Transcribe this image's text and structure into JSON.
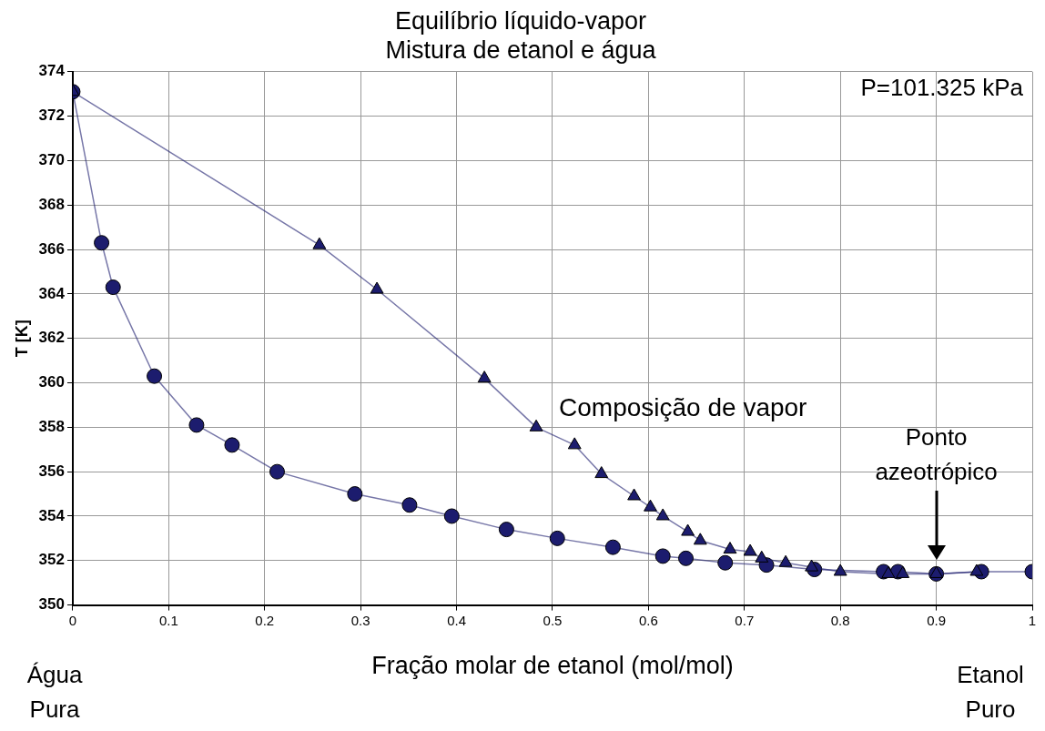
{
  "chart_data": {
    "type": "line",
    "title": "Equilíbrio líquido-vapor",
    "subtitle": "Mistura de etanol e água",
    "xlabel": "Fração molar de etanol (mol/mol)",
    "ylabel": "T [K]",
    "xlim": [
      0,
      1
    ],
    "xticks": [
      0,
      0.1,
      0.2,
      0.3,
      0.4,
      0.5,
      0.6,
      0.7,
      0.8,
      0.9,
      1
    ],
    "ylim": [
      350,
      374
    ],
    "yticks": [
      350,
      352,
      354,
      356,
      358,
      360,
      362,
      364,
      366,
      368,
      370,
      372,
      374
    ],
    "grid": true,
    "legend": false,
    "series": [
      {
        "marker": "circle",
        "color": "#1c1c6e",
        "x": [
          0,
          0.03,
          0.042,
          0.085,
          0.129,
          0.166,
          0.213,
          0.294,
          0.351,
          0.395,
          0.452,
          0.505,
          0.563,
          0.615,
          0.639,
          0.68,
          0.723,
          0.773,
          0.845,
          0.86,
          0.9,
          0.947,
          1
        ],
        "values": [
          373.1,
          366.3,
          364.3,
          360.3,
          358.1,
          357.2,
          356.0,
          355.0,
          354.5,
          354.0,
          353.4,
          353.0,
          352.6,
          352.2,
          352.1,
          351.9,
          351.8,
          351.6,
          351.5,
          351.5,
          351.4,
          351.5,
          351.5
        ]
      },
      {
        "marker": "triangle",
        "name": "Composição de vapor",
        "color": "#1c1c6e",
        "x": [
          0,
          0.257,
          0.317,
          0.429,
          0.483,
          0.523,
          0.551,
          0.585,
          0.602,
          0.615,
          0.641,
          0.654,
          0.685,
          0.706,
          0.718,
          0.743,
          0.77,
          0.8,
          0.85,
          0.865,
          0.9,
          0.942
        ],
        "values": [
          373.1,
          366.2,
          364.2,
          360.2,
          358.0,
          357.2,
          355.9,
          354.9,
          354.4,
          354.0,
          353.3,
          352.9,
          352.5,
          352.4,
          352.1,
          351.9,
          351.7,
          351.5,
          351.4,
          351.4,
          351.4,
          351.5
        ]
      }
    ],
    "annotations": [
      "P=101.325 kPa",
      "Ponto azeotrópico",
      "Água Pura",
      "Etanol Puro"
    ]
  }
}
